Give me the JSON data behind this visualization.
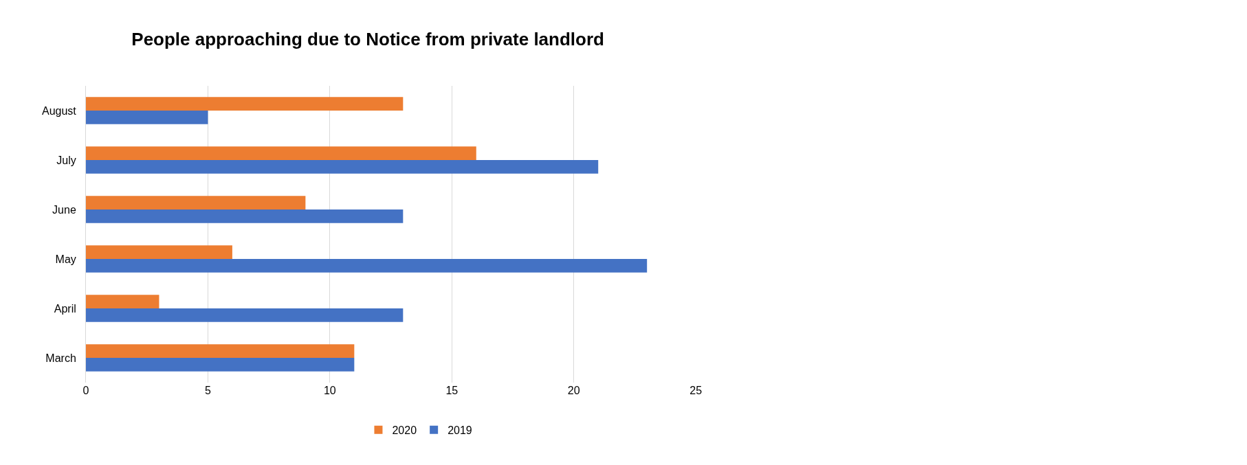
{
  "chart_data": {
    "type": "bar",
    "orientation": "horizontal",
    "title": "People approaching due to Notice from private landlord",
    "categories": [
      "August",
      "July",
      "June",
      "May",
      "April",
      "March"
    ],
    "series": [
      {
        "name": "2020",
        "color": "#ed7d31",
        "values": [
          13,
          16,
          9,
          6,
          3,
          11
        ]
      },
      {
        "name": "2019",
        "color": "#4472c4",
        "values": [
          5,
          21,
          13,
          23,
          13,
          11
        ]
      }
    ],
    "xlim": [
      0,
      25
    ],
    "xticks": [
      0,
      5,
      10,
      15,
      20,
      25
    ],
    "grid": "x",
    "legend": "bottom"
  }
}
